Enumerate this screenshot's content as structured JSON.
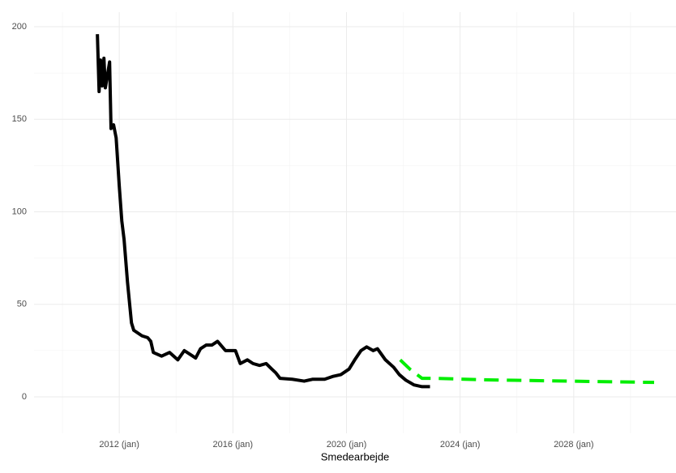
{
  "chart_data": {
    "type": "line",
    "xlabel": "Smedearbejde",
    "xlim": [
      2009.0,
      2031.6
    ],
    "ylim": [
      -19.7,
      207.9
    ],
    "xticks": [
      {
        "value": 2012,
        "label": "2012 (jan)"
      },
      {
        "value": 2016,
        "label": "2016 (jan)"
      },
      {
        "value": 2020,
        "label": "2020 (jan)"
      },
      {
        "value": 2024,
        "label": "2024 (jan)"
      },
      {
        "value": 2028,
        "label": "2028 (jan)"
      }
    ],
    "yticks": [
      0,
      50,
      100,
      150,
      200
    ],
    "grid": true,
    "series": [
      {
        "color": "#000000",
        "dash": "solid",
        "x": [
          2011.23,
          2011.29,
          2011.34,
          2011.4,
          2011.46,
          2011.51,
          2011.66,
          2011.71,
          2011.8,
          2011.89,
          2012.0,
          2012.09,
          2012.17,
          2012.29,
          2012.43,
          2012.51,
          2012.8,
          2013.0,
          2013.11,
          2013.2,
          2013.49,
          2013.77,
          2014.06,
          2014.29,
          2014.49,
          2014.69,
          2014.86,
          2015.06,
          2015.26,
          2015.46,
          2015.74,
          2016.09,
          2016.26,
          2016.51,
          2016.71,
          2016.94,
          2017.17,
          2017.37,
          2017.51,
          2017.66,
          2018.09,
          2018.51,
          2018.8,
          2019.23,
          2019.51,
          2019.8,
          2020.09,
          2020.29,
          2020.51,
          2020.71,
          2020.94,
          2021.09,
          2021.37,
          2021.66,
          2021.86,
          2022.09,
          2022.37,
          2022.66,
          2022.94
        ],
        "values": [
          196,
          165,
          182,
          168,
          183,
          167,
          181,
          145,
          147,
          140,
          114,
          95,
          85,
          62,
          40,
          36,
          33,
          32,
          30,
          24,
          22,
          24,
          20,
          25,
          23,
          21,
          26,
          28,
          28,
          30,
          25,
          25,
          18,
          20,
          18,
          17,
          18,
          15,
          13,
          10,
          9.5,
          8.5,
          9.5,
          9.5,
          11,
          12,
          15,
          20,
          25,
          27,
          25,
          26,
          20,
          16,
          12,
          9,
          6.5,
          5.5,
          5.5
        ]
      },
      {
        "color": "#00ee00",
        "dash": "dashed",
        "x": [
          2021.89,
          2022.23,
          2022.66,
          2023.1,
          2024.97,
          2027.83,
          2030.83
        ],
        "values": [
          20,
          15,
          10,
          10,
          9.2,
          8.5,
          7.8
        ]
      }
    ]
  }
}
